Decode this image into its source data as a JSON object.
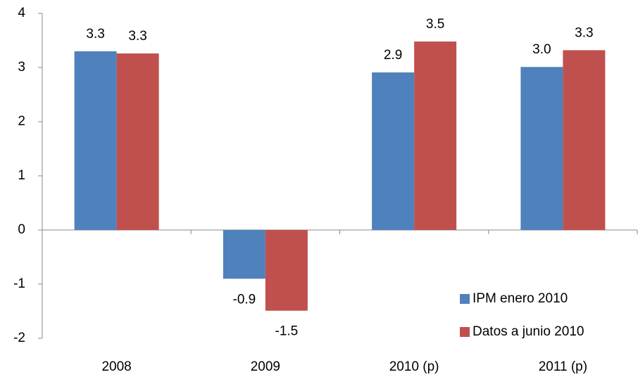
{
  "chart_data": {
    "type": "bar",
    "categories": [
      "2008",
      "2009",
      "2010 (p)",
      "2011 (p)"
    ],
    "series": [
      {
        "name": "IPM enero 2010",
        "color": "#4f81bd",
        "values": [
          3.3,
          -0.9,
          2.91,
          3.01
        ],
        "value_labels": [
          "3.3",
          "-0.9",
          "2.9",
          "3.0"
        ]
      },
      {
        "name": "Datos a junio 2010",
        "color": "#c0504d",
        "values": [
          3.26,
          -1.49,
          3.48,
          3.32
        ],
        "value_labels": [
          "3.3",
          "-1.5",
          "3.5",
          "3.3"
        ]
      }
    ],
    "ylim": [
      -2,
      4
    ],
    "yticks": [
      -2,
      -1,
      0,
      1,
      2,
      3,
      4
    ],
    "grid": false,
    "legend": "lower right"
  }
}
